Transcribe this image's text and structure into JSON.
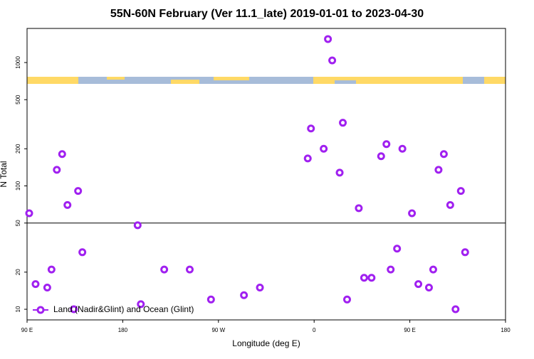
{
  "chart_data": {
    "type": "scatter",
    "title": "55N-60N February (Ver 11.1_late)   2019-01-01 to 2023-04-30",
    "x_label": "Longitude (deg E)",
    "y_label": "N Total",
    "xlim": [
      90,
      540
    ],
    "xticks": [
      {
        "value": 90,
        "label": "90 E"
      },
      180,
      {
        "value": 270,
        "label": "90 W"
      },
      {
        "value": 360,
        "label": "0"
      },
      {
        "value": 450,
        "label": "90 E"
      },
      {
        "value": 540,
        "label": "180"
      }
    ],
    "ylim": [
      8.2,
      1890
    ],
    "yticks": [
      10,
      20,
      50,
      100,
      200,
      500,
      1000
    ],
    "y_scale": "log",
    "hline": 50,
    "legend": "lower left",
    "series": [
      {
        "name": "Land (Nadir&Glint) and Ocean (Glint)",
        "color": "#a020f0",
        "x": [
          92,
          98,
          109,
          113,
          118,
          123,
          128,
          134,
          138,
          142,
          194,
          197,
          219,
          243,
          263,
          294,
          309,
          354,
          357,
          369,
          373,
          377,
          384,
          387,
          391,
          402,
          407,
          414,
          423,
          428,
          432,
          438,
          443,
          452,
          458,
          468,
          472,
          477,
          482,
          488,
          493,
          498,
          502
        ],
        "values": [
          60,
          16,
          15,
          21,
          135,
          181,
          70,
          10,
          91,
          29,
          48,
          11,
          21,
          21,
          12,
          13,
          15,
          167,
          292,
          200,
          1550,
          1040,
          128,
          325,
          12,
          66,
          18,
          18,
          174,
          218,
          21,
          31,
          200,
          60,
          16,
          15,
          21,
          135,
          181,
          70,
          10,
          91,
          29
        ]
      }
    ]
  }
}
